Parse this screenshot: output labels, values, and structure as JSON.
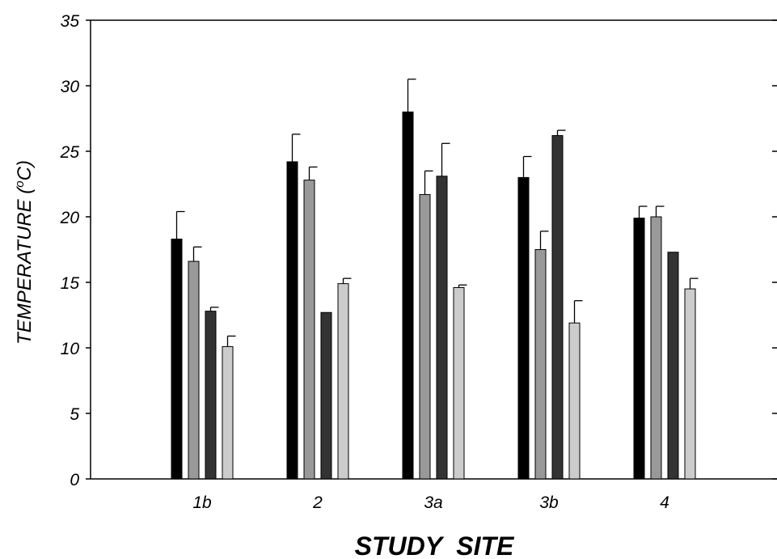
{
  "chart_data": {
    "type": "bar",
    "categories": [
      "1b",
      "2",
      "3a",
      "3b",
      "4"
    ],
    "series": [
      {
        "values": [
          18.3,
          24.2,
          28.0,
          23.0,
          19.9
        ],
        "errors": [
          2.1,
          2.1,
          2.5,
          1.6,
          0.9
        ],
        "color": "#000000"
      },
      {
        "values": [
          16.6,
          22.8,
          21.7,
          17.5,
          20.0
        ],
        "errors": [
          1.1,
          1.0,
          1.8,
          1.4,
          0.8
        ],
        "color": "#999999"
      },
      {
        "values": [
          12.8,
          12.7,
          23.1,
          26.2,
          17.3
        ],
        "errors": [
          0.3,
          0.0,
          2.5,
          0.4,
          0.0
        ],
        "color": "#333333"
      },
      {
        "values": [
          10.1,
          14.9,
          14.6,
          11.9,
          14.5
        ],
        "errors": [
          0.8,
          0.4,
          0.2,
          1.7,
          0.8
        ],
        "color": "#cccccc"
      }
    ],
    "title": "",
    "xlabel": "STUDY  SITE",
    "ylabel_main": "TEMPERATURE (",
    "ylabel_sup": "o",
    "ylabel_end": "C)",
    "ylim": [
      0,
      35
    ],
    "yticks": [
      "0",
      "5",
      "10",
      "15",
      "20",
      "25",
      "30",
      "35"
    ],
    "grid": false,
    "legend": "none"
  }
}
